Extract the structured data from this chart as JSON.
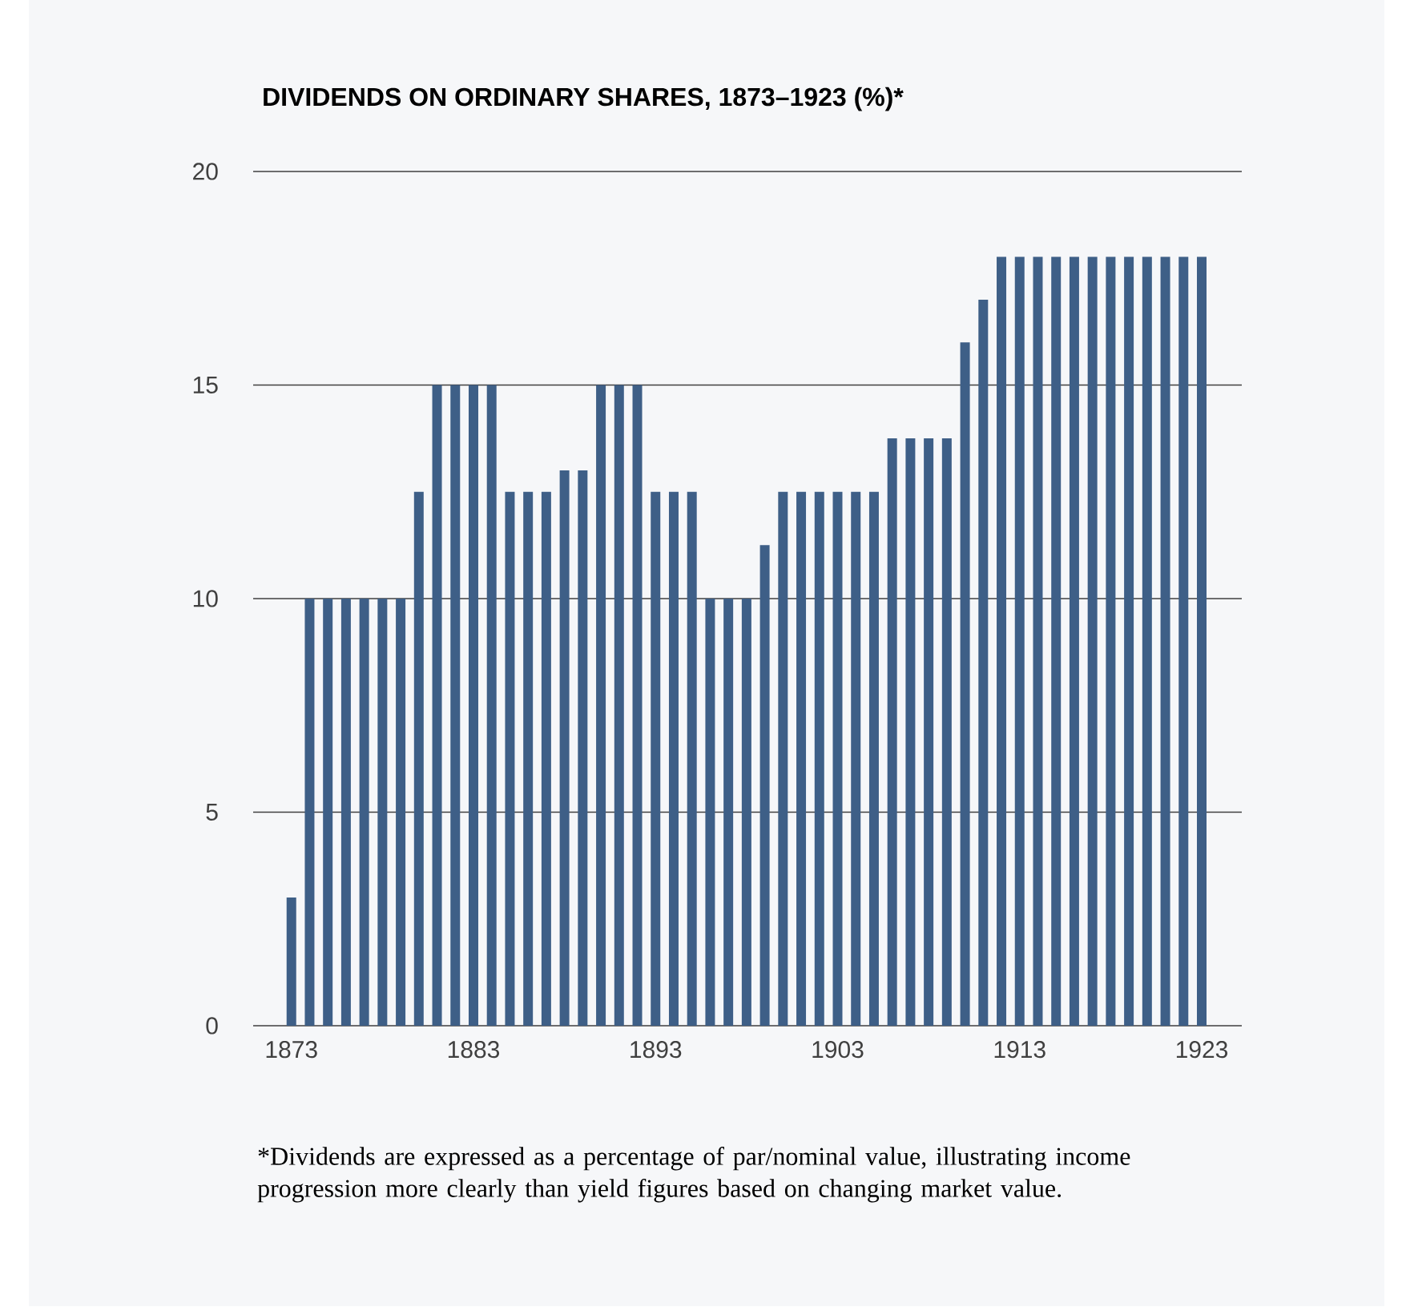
{
  "chart_data": {
    "type": "bar",
    "title": "DIVIDENDS ON ORDINARY SHARES, 1873–1923 (%)*",
    "categories": [
      "1873",
      null,
      null,
      null,
      null,
      null,
      null,
      null,
      null,
      null,
      "1883",
      null,
      null,
      null,
      null,
      null,
      null,
      null,
      null,
      null,
      "1893",
      null,
      null,
      null,
      null,
      null,
      null,
      null,
      null,
      null,
      "1903",
      null,
      null,
      null,
      null,
      null,
      null,
      null,
      null,
      null,
      "1913",
      null,
      null,
      null,
      null,
      null,
      null,
      null,
      null,
      null,
      "1923"
    ],
    "values": [
      3,
      10,
      10,
      10,
      10,
      10,
      10,
      12.5,
      15,
      15,
      15,
      15,
      12.5,
      12.5,
      12.5,
      13,
      13,
      15,
      15,
      15,
      12.5,
      12.5,
      12.5,
      10,
      10,
      10,
      11.25,
      12.5,
      12.5,
      12.5,
      12.5,
      12.5,
      12.5,
      13.75,
      13.75,
      13.75,
      13.75,
      16,
      17,
      18,
      18,
      18,
      18,
      18,
      18,
      18,
      18,
      18,
      18,
      18,
      18
    ],
    "color": "#3e5f87",
    "ylim": [
      0,
      20
    ],
    "yticks": [
      0,
      5,
      10,
      15,
      20
    ],
    "grid": "y",
    "annotations": [
      "*Dividends are expressed as a percentage of par/nominal value, illustrating income progression more clearly than yield figures based on changing market value."
    ]
  }
}
